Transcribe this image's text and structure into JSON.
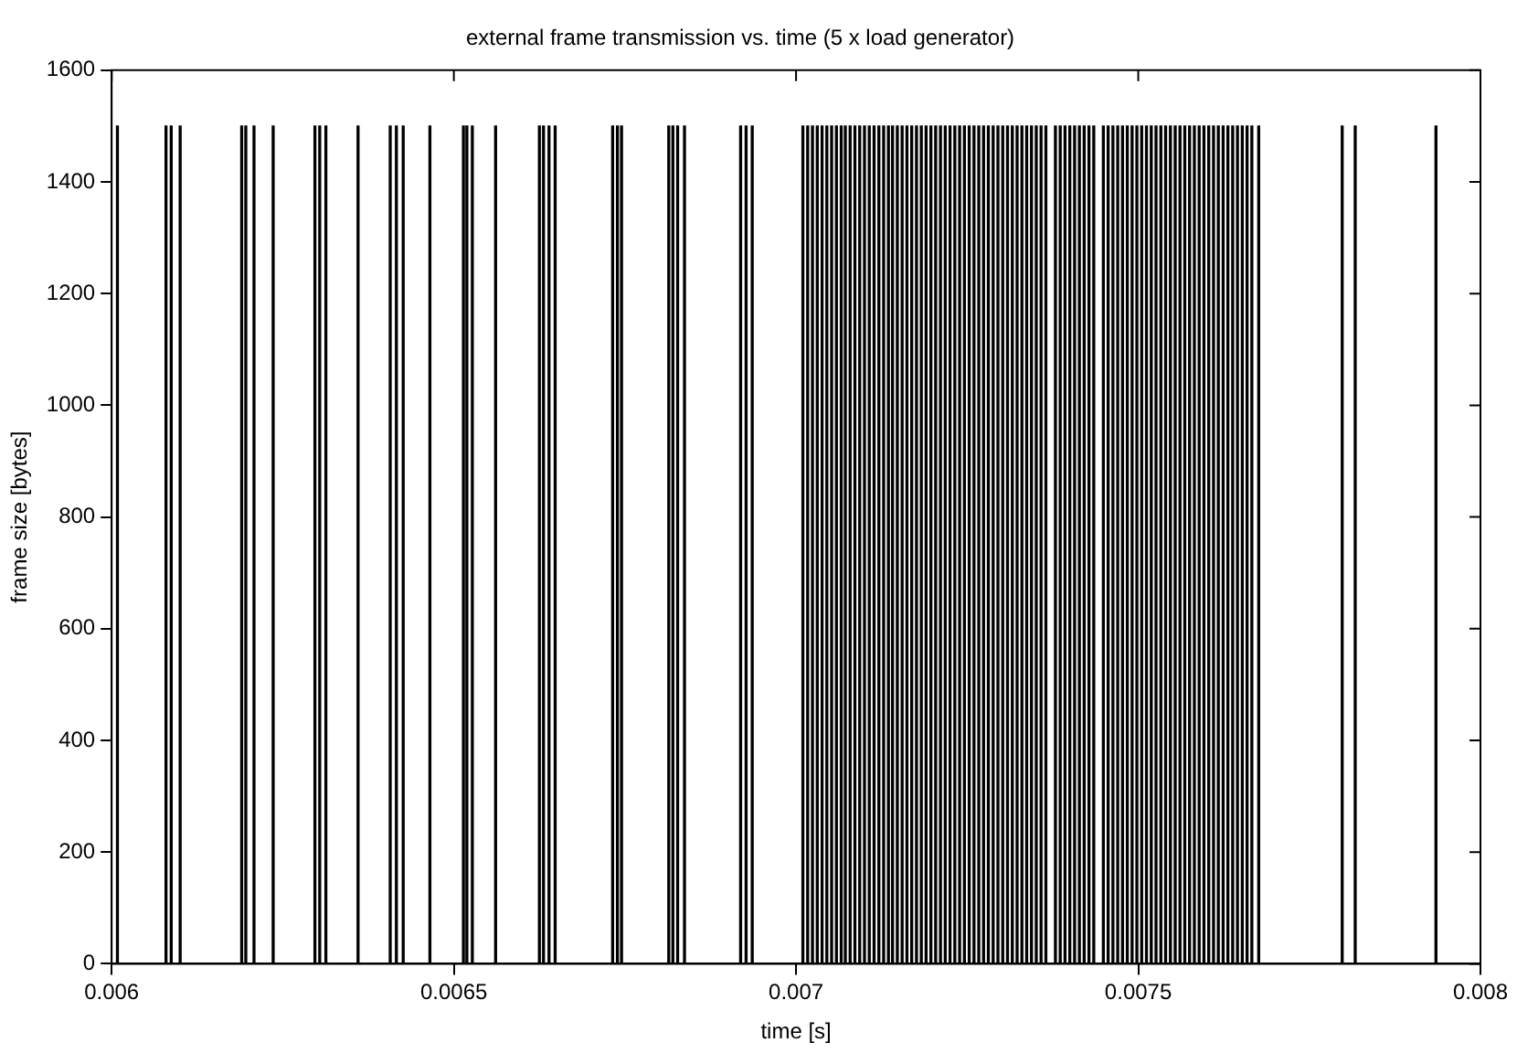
{
  "chart_data": {
    "type": "bar",
    "title": "external frame transmission vs. time (5 x load generator)",
    "xlabel": "time [s]",
    "ylabel": "frame size [bytes]",
    "x": [
      0.0060084,
      0.0060794,
      0.006087,
      0.0061001,
      0.00619,
      0.006196,
      0.006208,
      0.006236,
      0.006297,
      0.006304,
      0.006313,
      0.00636,
      0.006407,
      0.006416,
      0.006426,
      0.006465,
      0.006514,
      0.006519,
      0.006527,
      0.006561,
      0.006625,
      0.006631,
      0.006639,
      0.006648,
      0.006732,
      0.006739,
      0.006745,
      0.006814,
      0.00682,
      0.006827,
      0.006837,
      0.006919,
      0.006927,
      0.006936,
      0.00701,
      0.007017,
      0.007024,
      0.007031,
      0.007038,
      0.007045,
      0.007052,
      0.007059,
      0.007066,
      0.007072,
      0.007079,
      0.007086,
      0.007093,
      0.0071,
      0.007107,
      0.007114,
      0.007121,
      0.007128,
      0.007135,
      0.007141,
      0.007148,
      0.007155,
      0.007162,
      0.007169,
      0.007176,
      0.007183,
      0.00719,
      0.007197,
      0.007204,
      0.007211,
      0.007218,
      0.007225,
      0.007232,
      0.007239,
      0.007246,
      0.007253,
      0.00726,
      0.007267,
      0.007274,
      0.007281,
      0.007288,
      0.007295,
      0.007302,
      0.007309,
      0.007316,
      0.007323,
      0.00733,
      0.007337,
      0.007344,
      0.007351,
      0.007358,
      0.007365,
      0.007379,
      0.007386,
      0.007393,
      0.0074,
      0.007407,
      0.007414,
      0.007421,
      0.007428,
      0.007435,
      0.007449,
      0.007456,
      0.007463,
      0.00747,
      0.007477,
      0.007484,
      0.007491,
      0.007498,
      0.007505,
      0.007512,
      0.007519,
      0.007526,
      0.007533,
      0.00754,
      0.007547,
      0.007554,
      0.007561,
      0.007568,
      0.007575,
      0.007582,
      0.007589,
      0.007596,
      0.007603,
      0.00761,
      0.007617,
      0.007624,
      0.007631,
      0.007638,
      0.007645,
      0.007652,
      0.007659,
      0.007666,
      0.007676,
      0.007798,
      0.007817,
      0.007935
    ],
    "values": [
      1500,
      1500,
      1500,
      1500,
      1500,
      1500,
      1500,
      1500,
      1500,
      1500,
      1500,
      1500,
      1500,
      1500,
      1500,
      1500,
      1500,
      1500,
      1500,
      1500,
      1500,
      1500,
      1500,
      1500,
      1500,
      1500,
      1500,
      1500,
      1500,
      1500,
      1500,
      1500,
      1500,
      1500,
      1500,
      1500,
      1500,
      1500,
      1500,
      1500,
      1500,
      1500,
      1500,
      1500,
      1500,
      1500,
      1500,
      1500,
      1500,
      1500,
      1500,
      1500,
      1500,
      1500,
      1500,
      1500,
      1500,
      1500,
      1500,
      1500,
      1500,
      1500,
      1500,
      1500,
      1500,
      1500,
      1500,
      1500,
      1500,
      1500,
      1500,
      1500,
      1500,
      1500,
      1500,
      1500,
      1500,
      1500,
      1500,
      1500,
      1500,
      1500,
      1500,
      1500,
      1500,
      1500,
      1500,
      1500,
      1500,
      1500,
      1500,
      1500,
      1500,
      1500,
      1500,
      1500,
      1500,
      1500,
      1500,
      1500,
      1500,
      1500,
      1500,
      1500,
      1500,
      1500,
      1500,
      1500,
      1500,
      1500,
      1500,
      1500,
      1500,
      1500,
      1500,
      1500,
      1500,
      1500,
      1500,
      1500,
      1500,
      1500,
      1500,
      1500,
      1500,
      1500,
      1500,
      1500,
      1500,
      1500,
      1500
    ],
    "color": "#000000",
    "xlim": [
      0.006,
      0.008
    ],
    "xticks": [
      0.006,
      0.0065,
      0.007,
      0.0075,
      0.008
    ],
    "ylim": [
      0,
      1600
    ],
    "yticks": [
      0,
      200,
      400,
      600,
      800,
      1000,
      1200,
      1400,
      1600
    ],
    "grid": false,
    "legend": false
  }
}
